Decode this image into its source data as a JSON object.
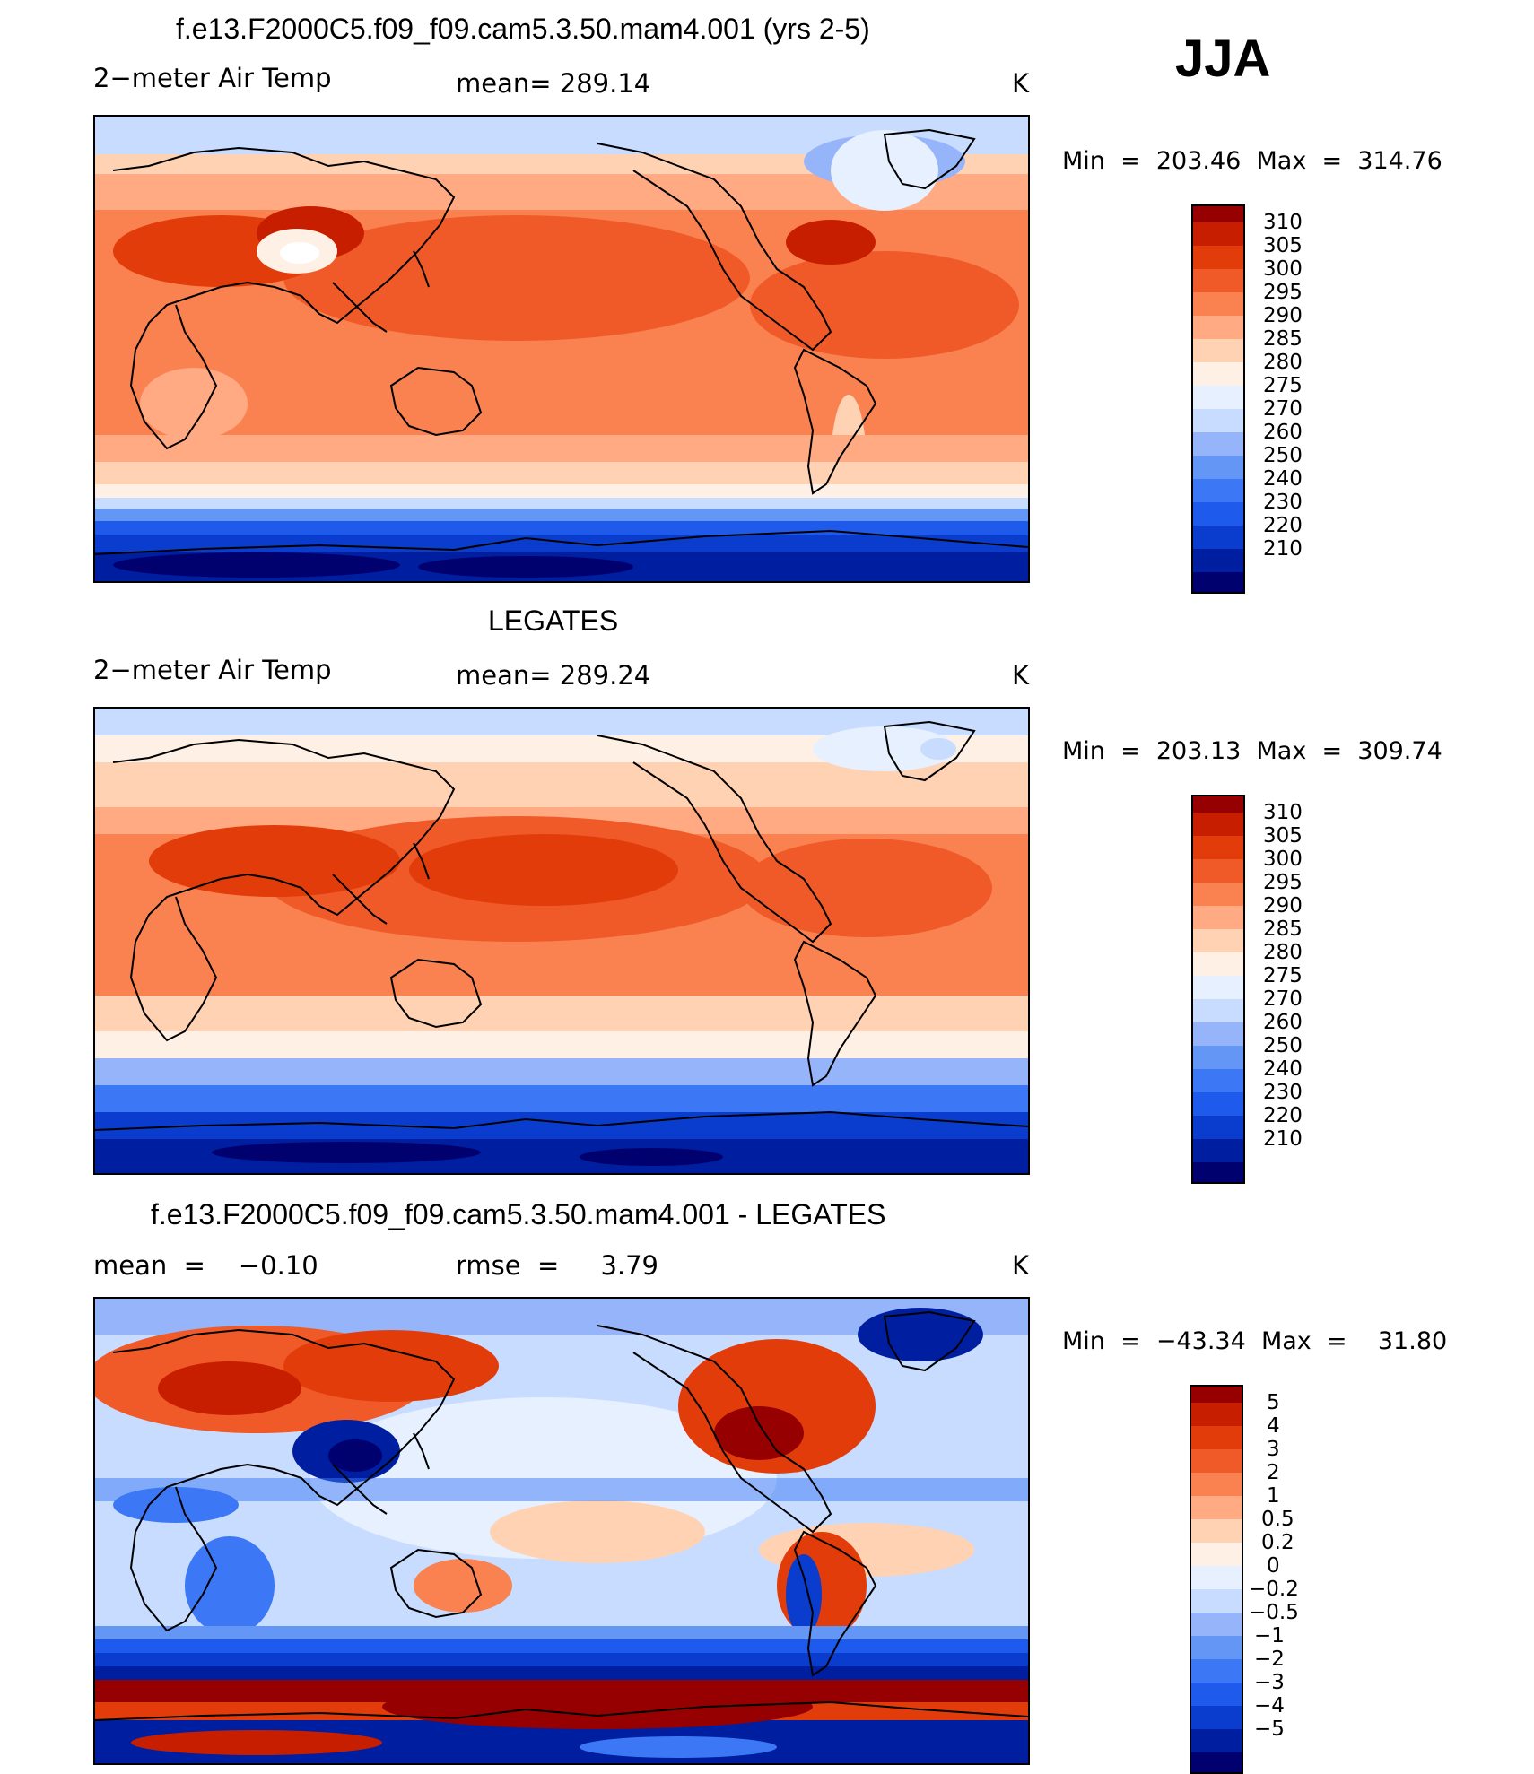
{
  "season": "JJA",
  "colors": {
    "levels_main": [
      "#00006e",
      "#001ea0",
      "#0a3ccd",
      "#1e5aeb",
      "#3c78f5",
      "#6496f5",
      "#96b4fa",
      "#c8dcff",
      "#e6f0ff",
      "#fff0e6",
      "#ffd2b4",
      "#ffaa82",
      "#fa8250",
      "#f05a28",
      "#e13c0a",
      "#c81e00",
      "#960000"
    ],
    "levels_diff": [
      "#00006e",
      "#001ea0",
      "#0a3ccd",
      "#1e5aeb",
      "#3c78f5",
      "#6496f5",
      "#96b4fa",
      "#c8dcff",
      "#e6f0ff",
      "#fff0e6",
      "#ffd2b4",
      "#ffaa82",
      "#fa8250",
      "#f05a28",
      "#e13c0a",
      "#c81e00",
      "#960000"
    ]
  },
  "panels": [
    {
      "title": "f.e13.F2000C5.f09_f09.cam5.3.50.mam4.001 (yrs 2-5)",
      "left_label": "2−meter Air Temp",
      "center_label": "mean= 289.14",
      "units": "K",
      "minmax": "Min  =  203.46  Max  =  314.76",
      "legend_labels": [
        "310",
        "305",
        "300",
        "295",
        "290",
        "285",
        "280",
        "275",
        "270",
        "260",
        "250",
        "240",
        "230",
        "220",
        "210"
      ]
    },
    {
      "title": "LEGATES",
      "left_label": "2−meter Air Temp",
      "center_label": "mean= 289.24",
      "units": "K",
      "minmax": "Min  =  203.13  Max  =  309.74",
      "legend_labels": [
        "310",
        "305",
        "300",
        "295",
        "290",
        "285",
        "280",
        "275",
        "270",
        "260",
        "250",
        "240",
        "230",
        "220",
        "210"
      ]
    },
    {
      "title": "f.e13.F2000C5.f09_f09.cam5.3.50.mam4.001 - LEGATES",
      "left_label": "mean  =    −0.10",
      "center_label": "rmse  =     3.79",
      "units": "K",
      "minmax": "Min  =  −43.34  Max  =    31.80",
      "legend_labels": [
        "5",
        "4",
        "3",
        "2",
        "1",
        "0.5",
        "0.2",
        "0",
        "−0.2",
        "−0.5",
        "−1",
        "−2",
        "−3",
        "−4",
        "−5"
      ]
    }
  ]
}
